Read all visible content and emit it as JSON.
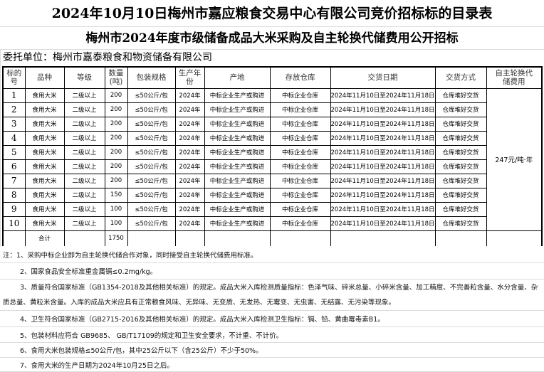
{
  "title": "2024年10月10日梅州市嘉应粮食交易中心有限公司竞价招标标的目录表",
  "subtitle": "梅州市2024年度市级储备成品大米采购及自主轮换代储费用公开招标",
  "entrust": "委托单位：梅州市嘉泰粮食和物资储备有限公司",
  "headers": [
    "标的号",
    "品种",
    "等级",
    "数量(吨)",
    "包装规格",
    "生产年份",
    "产地",
    "存放仓库",
    "交货日期",
    "交货方式",
    "自主轮换代储费用"
  ],
  "rows": [
    {
      "no": "1",
      "variety": "食用大米",
      "grade": "二级以上",
      "qty": "200",
      "pack": "≤50公斤/包",
      "year": "2024年",
      "origin": "中标企业生产或购进",
      "warehouse": "中标企业仓库",
      "date": "2024年11月10日至2024年11月18日",
      "method": "仓库堆好交货"
    },
    {
      "no": "2",
      "variety": "食用大米",
      "grade": "二级以上",
      "qty": "200",
      "pack": "≤50公斤/包",
      "year": "2024年",
      "origin": "中标企业生产或购进",
      "warehouse": "中标企业仓库",
      "date": "2024年11月10日至2024年11月18日",
      "method": "仓库堆好交货"
    },
    {
      "no": "3",
      "variety": "食用大米",
      "grade": "二级以上",
      "qty": "200",
      "pack": "≤50公斤/包",
      "year": "2024年",
      "origin": "中标企业生产或购进",
      "warehouse": "中标企业仓库",
      "date": "2024年11月10日至2024年11月18日",
      "method": "仓库堆好交货"
    },
    {
      "no": "4",
      "variety": "食用大米",
      "grade": "二级以上",
      "qty": "200",
      "pack": "≤50公斤/包",
      "year": "2024年",
      "origin": "中标企业生产或购进",
      "warehouse": "中标企业仓库",
      "date": "2024年11月10日至2024年11月18日",
      "method": "仓库堆好交货"
    },
    {
      "no": "5",
      "variety": "食用大米",
      "grade": "二级以上",
      "qty": "200",
      "pack": "≤50公斤/包",
      "year": "2024年",
      "origin": "中标企业生产或购进",
      "warehouse": "中标企业仓库",
      "date": "2024年11月10日至2024年11月18日",
      "method": "仓库堆好交货"
    },
    {
      "no": "6",
      "variety": "食用大米",
      "grade": "二级以上",
      "qty": "200",
      "pack": "≤50公斤/包",
      "year": "2024年",
      "origin": "中标企业生产或购进",
      "warehouse": "中标企业仓库",
      "date": "2024年11月10日至2024年11月18日",
      "method": "仓库堆好交货"
    },
    {
      "no": "7",
      "variety": "食用大米",
      "grade": "二级以上",
      "qty": "200",
      "pack": "≤50公斤/包",
      "year": "2024年",
      "origin": "中标企业生产或购进",
      "warehouse": "中标企业仓库",
      "date": "2024年11月10日至2024年11月18日",
      "method": "仓库堆好交货"
    },
    {
      "no": "8",
      "variety": "食用大米",
      "grade": "二级以上",
      "qty": "150",
      "pack": "≤50公斤/包",
      "year": "2024年",
      "origin": "中标企业生产或购进",
      "warehouse": "中标企业仓库",
      "date": "2024年11月10日至2024年11月18日",
      "method": "仓库堆好交货"
    },
    {
      "no": "9",
      "variety": "食用大米",
      "grade": "二级以上",
      "qty": "100",
      "pack": "≤50公斤/包",
      "year": "2024年",
      "origin": "中标企业生产或购进",
      "warehouse": "中标企业仓库",
      "date": "2024年11月10日至2024年11月18日",
      "method": "仓库堆好交货"
    },
    {
      "no": "10",
      "variety": "食用大米",
      "grade": "二级以上",
      "qty": "100",
      "pack": "≤50公斤/包",
      "year": "2024年",
      "origin": "中标企业生产或购进",
      "warehouse": "中标企业仓库",
      "date": "2024年11月10日至2024年11月18日",
      "method": "仓库堆好交货"
    }
  ],
  "fee": "247元/吨·年",
  "total": {
    "label": "合计",
    "qty": "1750"
  },
  "notes": [
    "注：1、采购中标企业即为自主轮换代储合作对象，同时接受自主轮换代储费用标准。",
    "2、国家食品安全标准重金属镉≤0.2mg/kg。",
    "3、质量符合国家标准（GB1354-2018及其他相关标准）的规定。成品大米入库检测质量指标：色泽气味、碎米总量、小碎米含量、加工精度、不完善粒含量、水分含量、杂质总量、黄粒米含量。入库的成品大米应具有正常粮食风味、无异味、无变质、无发热、无霉变、无虫害、无结露、无污染等现象。",
    "4、卫生符合国家标准（GB2715-2016及其他相关标准）的规定。成品大米入库检测卫生指标：镉、铅、黄曲霉毒素B1。",
    "5、包装材料应符合 GB9685、 GB/T17109的规定和卫生安全要求，不计重、不计价。",
    "6、食用大米包装规格≤50公斤/包，其中25公斤以下（含25公斤）不少于50%。",
    "7、食用大米的生产日期为2024年10月25日之后。"
  ]
}
